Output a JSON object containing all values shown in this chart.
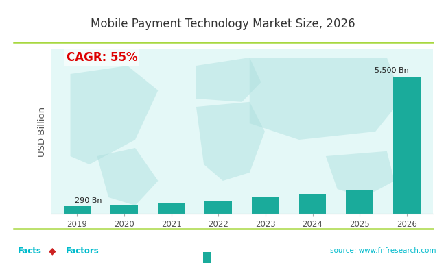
{
  "title": "Mobile Payment Technology Market Size, 2026",
  "years": [
    2019,
    2020,
    2021,
    2022,
    2023,
    2024,
    2025,
    2026
  ],
  "values": [
    290,
    350,
    430,
    530,
    650,
    790,
    970,
    5500
  ],
  "bar_color": "#1aab9b",
  "bg_color": "#ffffff",
  "plot_bg_color": "#e4f8f7",
  "ylabel": "USD Billion",
  "cagr_text": "CAGR: 55%",
  "cagr_color": "#dd0000",
  "label_first": "290 Bn",
  "label_last": "5,500 Bn",
  "source_text": "source: www.fnfresearch.com",
  "source_color": "#00bbcc",
  "title_color": "#333333",
  "title_fontsize": 12,
  "ylabel_fontsize": 9.5,
  "tick_fontsize": 8.5,
  "label_fontsize": 8,
  "border_color": "#a8d840",
  "footer_teal": "#00bbcc",
  "ylim_max": 6600
}
